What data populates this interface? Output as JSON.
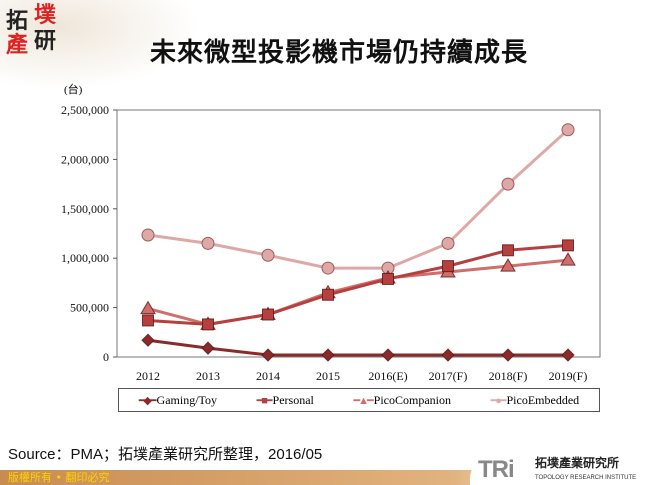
{
  "logo": {
    "chars": [
      "拓",
      "墣",
      "產",
      "研"
    ]
  },
  "title": "未來微型投影機市場仍持續成長",
  "chart_data": {
    "type": "line",
    "title": "未來微型投影機市場仍持續成長",
    "ylabel": "(台)",
    "categories": [
      "2012",
      "2013",
      "2014",
      "2015",
      "2016(E)",
      "2017(F)",
      "2018(F)",
      "2019(F)"
    ],
    "ylim": [
      0,
      2500000
    ],
    "yticks": [
      "0",
      "500,000",
      "1,000,000",
      "1,500,000",
      "2,000,000",
      "2,500,000"
    ],
    "legend": "bottom",
    "grid": false,
    "series": [
      {
        "name": "Gaming/Toy",
        "marker": "diamond",
        "color": "#8b2a2a",
        "values": [
          170000,
          90000,
          20000,
          20000,
          20000,
          20000,
          20000,
          20000
        ]
      },
      {
        "name": "Personal",
        "marker": "square",
        "color": "#b5403d",
        "values": [
          370000,
          330000,
          430000,
          630000,
          790000,
          920000,
          1080000,
          1130000
        ]
      },
      {
        "name": "PicoCompanion",
        "marker": "triangle",
        "color": "#cf6e6a",
        "values": [
          490000,
          330000,
          430000,
          650000,
          800000,
          860000,
          920000,
          980000
        ]
      },
      {
        "name": "PicoEmbedded",
        "marker": "circle",
        "color": "#dda9a7",
        "values": [
          1235000,
          1150000,
          1030000,
          900000,
          900000,
          1150000,
          1750000,
          2300000
        ]
      }
    ]
  },
  "source": "Source：PMA；拓墣產業研究所整理，2016/05",
  "footer": {
    "copyright": "版權所有 • 翻印必究",
    "brand": "TRi",
    "brand_zh": "拓墣產業研究所",
    "brand_en": "TOPOLOGY RESEARCH INSTITUTE"
  }
}
